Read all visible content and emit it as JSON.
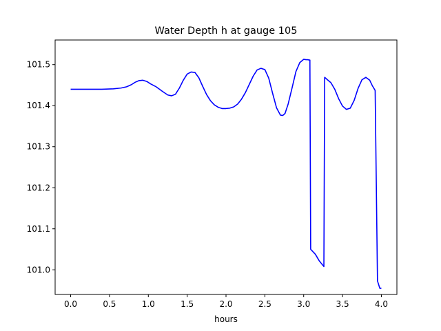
{
  "chart_data": {
    "type": "line",
    "title": "Water Depth h at gauge 105",
    "xlabel": "hours",
    "ylabel": "",
    "xlim": [
      -0.2,
      4.2
    ],
    "ylim": [
      100.94,
      101.56
    ],
    "x_ticks": [
      0.0,
      0.5,
      1.0,
      1.5,
      2.0,
      2.5,
      3.0,
      3.5,
      4.0
    ],
    "x_tick_labels": [
      "0.0",
      "0.5",
      "1.0",
      "1.5",
      "2.0",
      "2.5",
      "3.0",
      "3.5",
      "4.0"
    ],
    "y_ticks": [
      101.0,
      101.1,
      101.2,
      101.3,
      101.4,
      101.5
    ],
    "y_tick_labels": [
      "101.0",
      "101.1",
      "101.2",
      "101.3",
      "101.4",
      "101.5"
    ],
    "grid": false,
    "series": [
      {
        "color": "#0000ff",
        "x": [
          0.0,
          0.2,
          0.4,
          0.55,
          0.65,
          0.72,
          0.78,
          0.83,
          0.88,
          0.93,
          0.98,
          1.03,
          1.1,
          1.18,
          1.25,
          1.3,
          1.35,
          1.4,
          1.45,
          1.5,
          1.55,
          1.6,
          1.65,
          1.7,
          1.75,
          1.8,
          1.85,
          1.9,
          1.95,
          2.0,
          2.05,
          2.1,
          2.15,
          2.2,
          2.25,
          2.3,
          2.35,
          2.4,
          2.45,
          2.5,
          2.55,
          2.6,
          2.65,
          2.7,
          2.73,
          2.76,
          2.8,
          2.85,
          2.9,
          2.95,
          3.0,
          3.03,
          3.05,
          3.08,
          3.09,
          3.1,
          3.15,
          3.2,
          3.26,
          3.27,
          3.3,
          3.35,
          3.4,
          3.45,
          3.5,
          3.55,
          3.6,
          3.65,
          3.7,
          3.75,
          3.8,
          3.85,
          3.88,
          3.92,
          3.95,
          3.98,
          3.985,
          4.0
        ],
        "y": [
          101.44,
          101.44,
          101.44,
          101.441,
          101.443,
          101.446,
          101.451,
          101.457,
          101.461,
          101.462,
          101.459,
          101.453,
          101.446,
          101.435,
          101.426,
          101.424,
          101.428,
          101.443,
          101.462,
          101.477,
          101.482,
          101.481,
          101.468,
          101.447,
          101.427,
          101.412,
          101.402,
          101.396,
          101.393,
          101.393,
          101.394,
          101.397,
          101.404,
          101.416,
          101.432,
          101.452,
          101.472,
          101.487,
          101.491,
          101.488,
          101.467,
          101.43,
          101.395,
          101.377,
          101.376,
          101.381,
          101.404,
          101.443,
          101.483,
          101.505,
          101.513,
          101.512,
          101.512,
          101.511,
          101.05,
          101.048,
          101.038,
          101.022,
          101.008,
          101.469,
          101.464,
          101.456,
          101.44,
          101.417,
          101.399,
          101.391,
          101.394,
          101.413,
          101.442,
          101.463,
          101.469,
          101.462,
          101.45,
          101.437,
          100.973,
          100.955,
          100.955,
          100.955
        ]
      }
    ]
  }
}
